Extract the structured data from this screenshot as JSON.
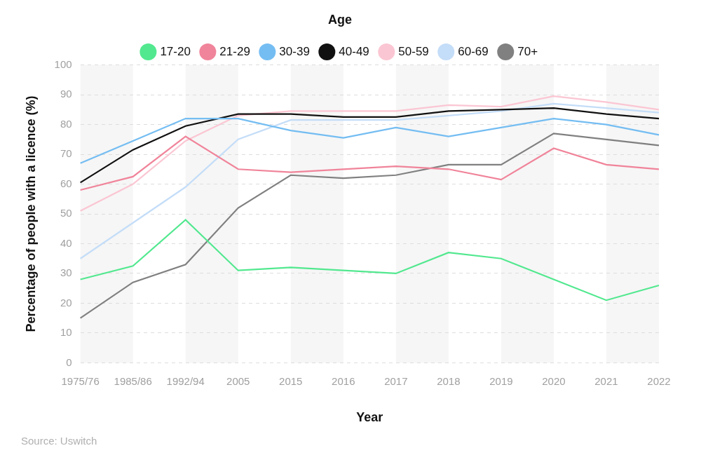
{
  "chart_data": {
    "type": "line",
    "legend_title": "Age",
    "x_label": "Year",
    "y_label": "Percentage of people with a licence (%)",
    "source": "Source: Uswitch",
    "categories": [
      "1975/76",
      "1985/86",
      "1992/94",
      "2005",
      "2015",
      "2016",
      "2017",
      "2018",
      "2019",
      "2020",
      "2021",
      "2022"
    ],
    "series": [
      {
        "name": "17-20",
        "color": "#52e88f",
        "values": [
          28,
          32.5,
          48,
          31,
          32,
          31,
          30,
          37,
          35,
          28,
          21,
          26
        ]
      },
      {
        "name": "21-29",
        "color": "#f0849a",
        "values": [
          58,
          62.5,
          76,
          65,
          64,
          65,
          66,
          65,
          61.5,
          72,
          66.5,
          65
        ]
      },
      {
        "name": "30-39",
        "color": "#74bdf2",
        "values": [
          67,
          74.5,
          82,
          82,
          78,
          75.5,
          79,
          76,
          79,
          82,
          80,
          76.5
        ]
      },
      {
        "name": "40-49",
        "color": "#111111",
        "values": [
          60.5,
          71.5,
          79.5,
          83.5,
          83.5,
          82.5,
          82.5,
          84.5,
          85,
          85.5,
          83.5,
          82
        ]
      },
      {
        "name": "50-59",
        "color": "#fbc6d3",
        "values": [
          51,
          60,
          74.5,
          83,
          84.5,
          84.5,
          84.5,
          86.5,
          86,
          89.5,
          87.5,
          85
        ]
      },
      {
        "name": "60-69",
        "color": "#c4ddf8",
        "values": [
          35,
          47,
          59,
          75,
          81.5,
          81.5,
          81.5,
          83,
          84.5,
          87,
          85.5,
          84
        ]
      },
      {
        "name": "70+",
        "color": "#808080",
        "values": [
          15,
          27,
          33,
          52,
          63,
          62,
          63,
          66.5,
          66.5,
          77,
          75,
          73
        ]
      }
    ],
    "ylim": [
      0,
      100
    ],
    "yticks": [
      0,
      10,
      20,
      30,
      40,
      50,
      60,
      70,
      80,
      90,
      100
    ],
    "grid": true,
    "legend": "top"
  }
}
